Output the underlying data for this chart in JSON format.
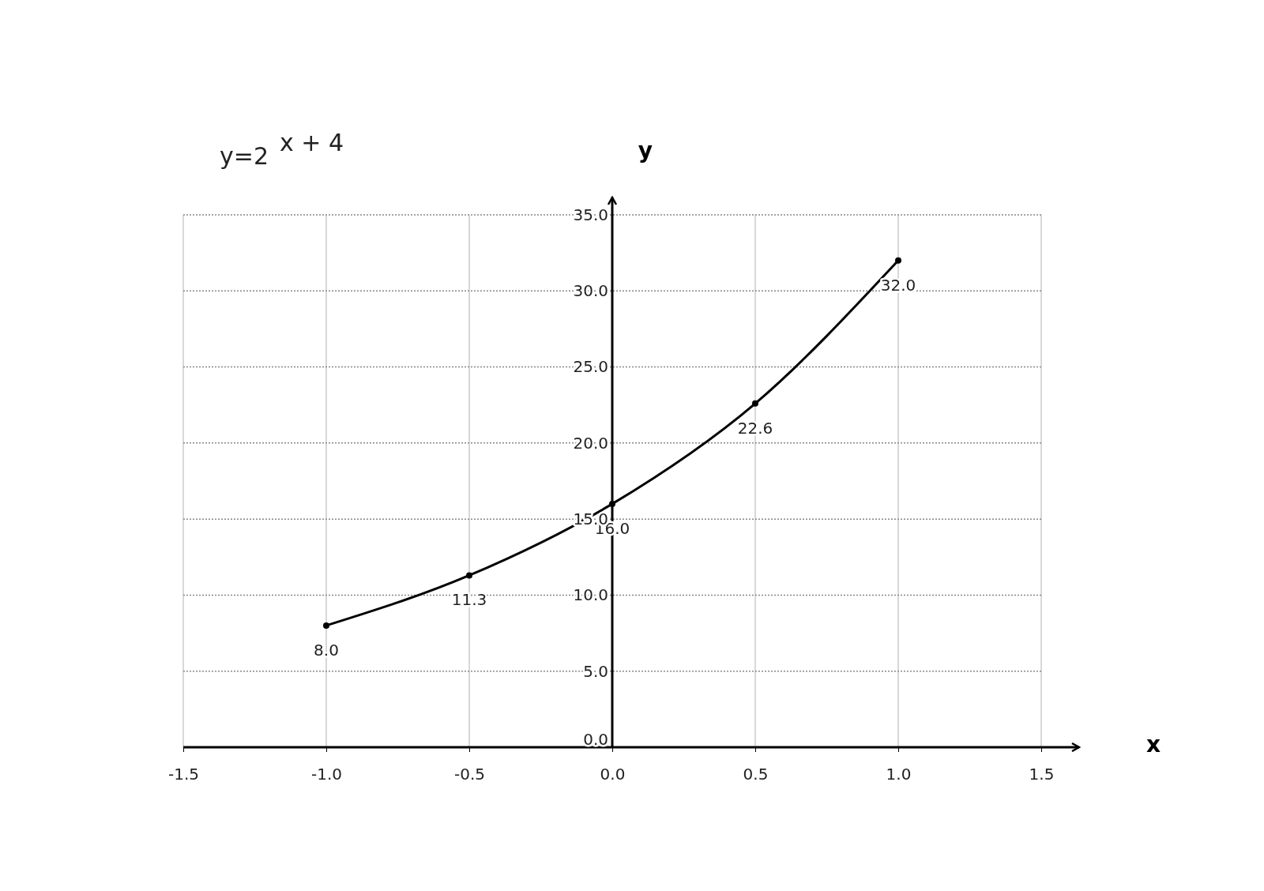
{
  "chart_data": {
    "type": "line",
    "title": "y=2$^{x + 4}$",
    "xlabel": "x",
    "ylabel": "y",
    "x": [
      -1,
      -0.5,
      0,
      0.5,
      1
    ],
    "series": [
      {
        "color": "#000000",
        "values": [
          8,
          11.3,
          16,
          22.6,
          32
        ],
        "value_labels": [
          "8.0",
          "11.3",
          "16.0",
          "22.6",
          "32.0"
        ]
      }
    ],
    "xlim": [
      -1.5,
      1.5
    ],
    "xticks": [
      {
        "value": -1.5,
        "label": "-1.5"
      },
      {
        "value": -1,
        "label": "-1.0"
      },
      {
        "value": -0.5,
        "label": "-0.5"
      },
      {
        "value": 0,
        "label": "0.0"
      },
      {
        "value": 0.5,
        "label": "0.5"
      },
      {
        "value": 1,
        "label": "1.0"
      },
      {
        "value": 1.5,
        "label": "1.5"
      }
    ],
    "ylim": [
      0,
      35
    ],
    "yticks": [
      {
        "value": 0,
        "label": "0.0"
      },
      {
        "value": 5,
        "label": "5.0"
      },
      {
        "value": 10,
        "label": "10.0"
      },
      {
        "value": 15,
        "label": "15.0"
      },
      {
        "value": 20,
        "label": "20.0"
      },
      {
        "value": 25,
        "label": "25.0"
      },
      {
        "value": 30,
        "label": "30.0"
      },
      {
        "value": 35,
        "label": "35.0"
      }
    ],
    "grid": true,
    "marker": "circle",
    "line_style": "solid"
  }
}
